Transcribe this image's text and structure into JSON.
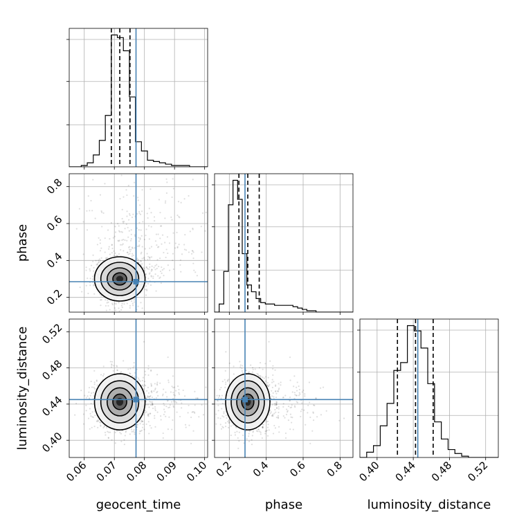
{
  "chart_data": {
    "type": "corner",
    "parameters": [
      {
        "name": "geocent_time",
        "range": [
          0.055,
          0.101
        ],
        "ticks": [
          "0.06",
          "0.07",
          "0.08",
          "0.09",
          "0.10"
        ],
        "tick_values": [
          0.06,
          0.07,
          0.08,
          0.09,
          0.1
        ]
      },
      {
        "name": "phase",
        "range": [
          0.12,
          0.87
        ],
        "ticks": [
          "0.2",
          "0.4",
          "0.6",
          "0.8"
        ],
        "tick_values": [
          0.2,
          0.4,
          0.6,
          0.8
        ]
      },
      {
        "name": "luminosity_distance",
        "range": [
          0.381,
          0.534
        ],
        "ticks": [
          "0.40",
          "0.44",
          "0.48",
          "0.52"
        ],
        "tick_values": [
          0.4,
          0.44,
          0.48,
          0.52
        ]
      }
    ],
    "truths": [
      0.0772,
      0.285,
      0.445
    ],
    "truth_color": "#4682b4",
    "quantiles": [
      [
        0.069,
        0.0718,
        0.0752
      ],
      [
        0.252,
        0.3,
        0.362
      ],
      [
        0.4225,
        0.4425,
        0.462
      ]
    ],
    "histograms": [
      {
        "edges_start": 0.055,
        "edges_step": 0.002,
        "counts": [
          0,
          0,
          1,
          3,
          9,
          20,
          39,
          100,
          98,
          88,
          53,
          19,
          12,
          5,
          4,
          3,
          2,
          1,
          1,
          1,
          0,
          0,
          0
        ]
      },
      {
        "edges_start": 0.12,
        "edges_step": 0.025,
        "counts": [
          0,
          6,
          30,
          79,
          97,
          83,
          43,
          20,
          15,
          10,
          7,
          6,
          6,
          5,
          5,
          5,
          5,
          4,
          3,
          2,
          1,
          1,
          0,
          0,
          0,
          0,
          0,
          0,
          0,
          0
        ]
      },
      {
        "edges_start": 0.381,
        "edges_step": 0.0075,
        "counts": [
          0,
          4,
          9,
          24,
          41,
          66,
          72,
          100,
          96,
          83,
          56,
          27,
          14,
          6,
          3,
          1,
          0,
          0,
          0,
          0,
          0
        ]
      }
    ],
    "pairs": [
      {
        "row": 1,
        "col": 0,
        "center": [
          0.0718,
          0.3
        ],
        "spread": [
          0.0042,
          0.06
        ],
        "tail": [
          1,
          1
        ]
      },
      {
        "row": 2,
        "col": 0,
        "center": [
          0.0718,
          0.4425
        ],
        "spread": [
          0.0042,
          0.0155
        ],
        "tail": [
          1,
          0
        ]
      },
      {
        "row": 2,
        "col": 1,
        "center": [
          0.3,
          0.4425
        ],
        "spread": [
          0.06,
          0.0155
        ],
        "tail": [
          1,
          0
        ]
      }
    ],
    "grid": true
  }
}
